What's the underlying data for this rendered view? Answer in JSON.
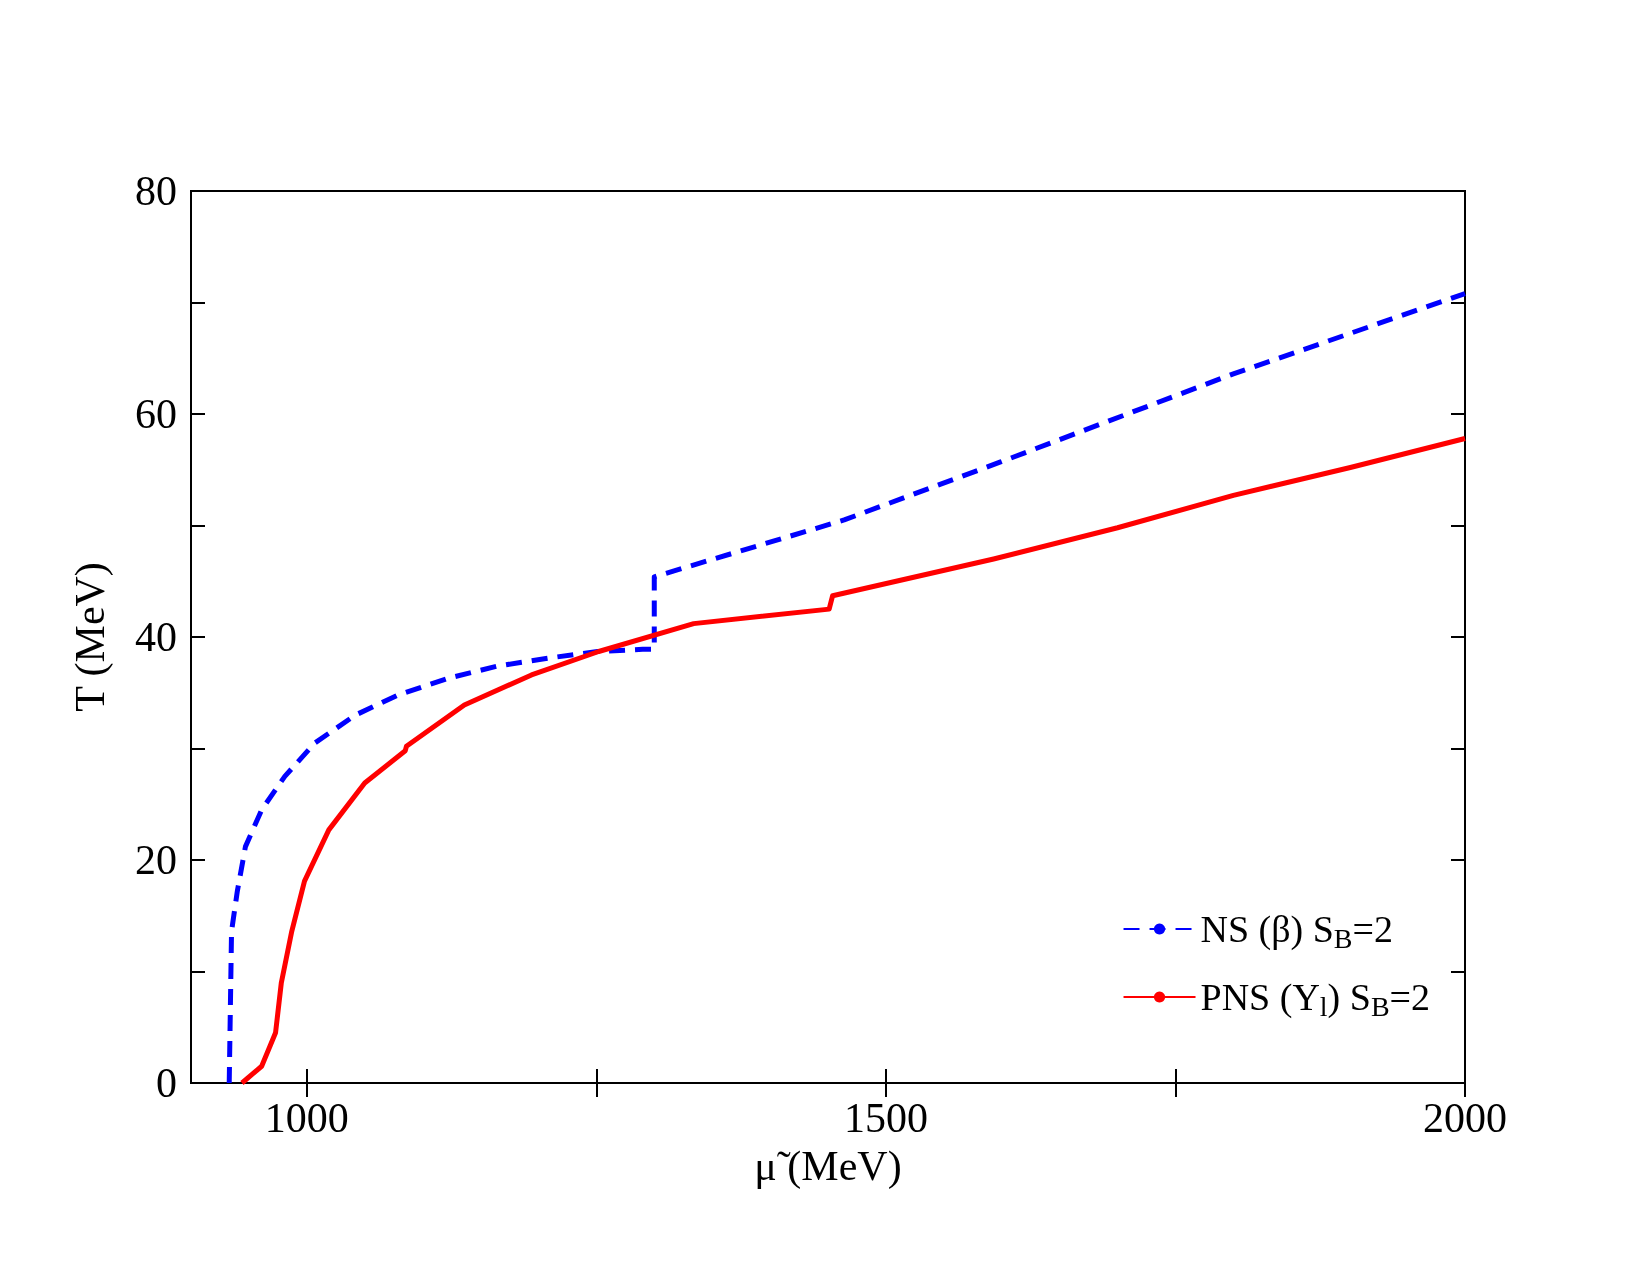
{
  "chart_data": {
    "type": "line",
    "xlabel": "μ̃ (MeV)",
    "ylabel": "T (MeV)",
    "xlim": [
      900,
      2000
    ],
    "xticks": [
      1000,
      {
        "value": 1250,
        "label": null
      },
      1500,
      {
        "value": 1750,
        "label": null
      },
      2000
    ],
    "ylim": [
      0,
      80
    ],
    "yticks": [
      0,
      {
        "value": 10,
        "label": null
      },
      20,
      {
        "value": 30,
        "label": null
      },
      40,
      {
        "value": 50,
        "label": null
      },
      60,
      {
        "value": 70,
        "label": null
      },
      80
    ],
    "grid": false,
    "legend": "bottom right",
    "marker": "none",
    "series": [
      {
        "name": "NS (β) S$_{B}$=2",
        "color": "#0000ff",
        "line_style": "dashed",
        "x": [
          933,
          935,
          940,
          947,
          961,
          981,
          1007,
          1042,
          1079,
          1122,
          1165,
          1208,
          1251,
          1290,
          1300,
          1300,
          1464,
          1599,
          1800,
          2000
        ],
        "values": [
          0,
          13.6,
          17.2,
          21.2,
          24.5,
          27.5,
          30.5,
          33.0,
          34.8,
          36.3,
          37.4,
          38.1,
          38.7,
          38.9,
          38.9,
          45.4,
          50.5,
          55.7,
          63.6,
          70.8
        ]
      },
      {
        "name": "PNS (Y$_{l}$) S$_{B}$=2",
        "color": "#ff0000",
        "line_style": "solid",
        "x": [
          944,
          961,
          973,
          978,
          987,
          998,
          1019,
          1050,
          1085,
          1086,
          1136,
          1194,
          1252,
          1334,
          1451,
          1454,
          1593,
          1700,
          1800,
          1901,
          2000
        ],
        "values": [
          0,
          1.5,
          4.5,
          9.0,
          13.6,
          18.1,
          22.7,
          26.9,
          29.8,
          30.2,
          33.9,
          36.6,
          38.7,
          41.2,
          42.5,
          43.7,
          47.0,
          49.8,
          52.7,
          55.2,
          57.8
        ]
      }
    ]
  }
}
